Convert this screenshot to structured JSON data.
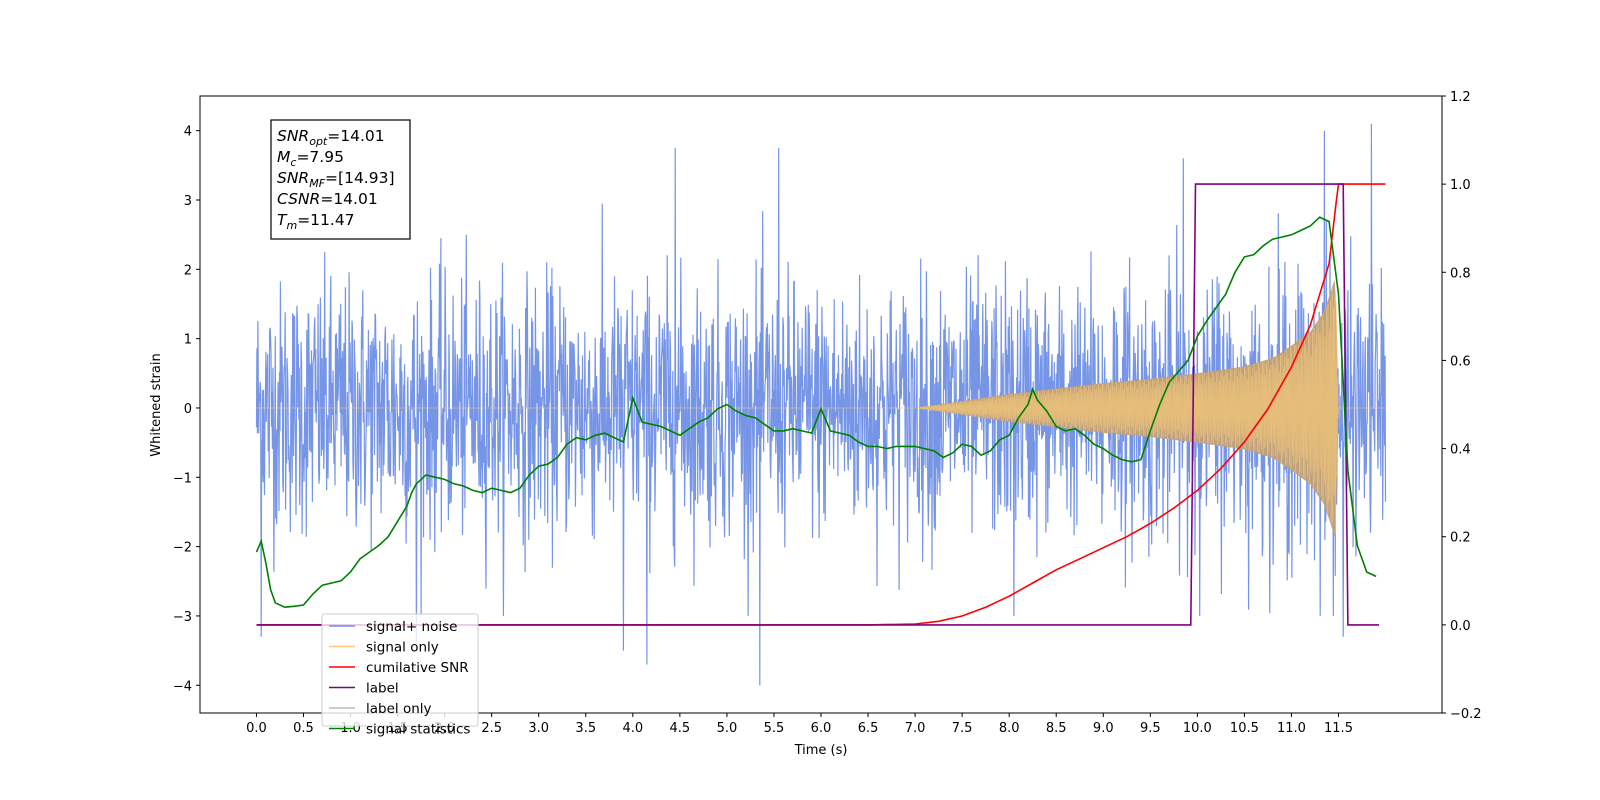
{
  "chart_data": {
    "type": "line",
    "title": "",
    "xlabel": "Time (s)",
    "ylabel": "Whitened strain",
    "xlim": [
      -0.6,
      12.6
    ],
    "ylim": [
      -4.4,
      4.5
    ],
    "y2lim": [
      -0.2,
      1.2
    ],
    "x_ticks": [
      0.0,
      0.5,
      1.0,
      1.5,
      2.0,
      2.5,
      3.0,
      3.5,
      4.0,
      4.5,
      5.0,
      5.5,
      6.0,
      6.5,
      7.0,
      7.5,
      8.0,
      8.5,
      9.0,
      9.5,
      10.0,
      10.5,
      11.0,
      11.5
    ],
    "x_tick_labels": [
      "0.0",
      "0.5",
      "1.0",
      "1.5",
      "2.0",
      "2.5",
      "3.0",
      "3.5",
      "4.0",
      "4.5",
      "5.0",
      "5.5",
      "6.0",
      "6.5",
      "7.0",
      "7.5",
      "8.0",
      "8.5",
      "9.0",
      "9.5",
      "10.0",
      "10.5",
      "11.0",
      "11.5"
    ],
    "y_ticks": [
      -4,
      -3,
      -2,
      -1,
      0,
      1,
      2,
      3,
      4
    ],
    "y_tick_labels": [
      "−4",
      "−3",
      "−2",
      "−1",
      "0",
      "1",
      "2",
      "3",
      "4"
    ],
    "y2_ticks": [
      -0.2,
      0.0,
      0.2,
      0.4,
      0.6,
      0.8,
      1.0,
      1.2
    ],
    "y2_tick_labels": [
      "−0.2",
      "0.0",
      "0.2",
      "0.4",
      "0.6",
      "0.8",
      "1.0",
      "1.2"
    ],
    "grid": false,
    "legend_position": "lower-left",
    "legend": [
      {
        "label": "signal+ noise",
        "color": "#6f8fe6"
      },
      {
        "label": "signal only",
        "color": "#f7c978"
      },
      {
        "label": "cumilative SNR",
        "color": "#ff0000"
      },
      {
        "label": "label",
        "color": "#800080"
      },
      {
        "label": "label only",
        "color": "#bbbbbb"
      },
      {
        "label": "signal statistics",
        "color": "#008000"
      }
    ],
    "annotation_lines": [
      {
        "main": "SNR",
        "sub": "opt",
        "rest": "=14.01"
      },
      {
        "main": "M",
        "sub": "c",
        "rest": "=7.95"
      },
      {
        "main": "SNR",
        "sub": "MF",
        "rest": "=[14.93]"
      },
      {
        "main": "CSNR",
        "sub": "",
        "rest": "=14.01"
      },
      {
        "main": "T",
        "sub": "m",
        "rest": "=11.47"
      }
    ],
    "series": [
      {
        "name": "signal+ noise",
        "axis": "left",
        "color": "#6f8fe6",
        "x_range": [
          0.0,
          12.0
        ],
        "typical_amplitude": 1.8,
        "peaks": [
          {
            "x": 0.05,
            "y": -3.3
          },
          {
            "x": 1.7,
            "y": -3.4
          },
          {
            "x": 3.9,
            "y": -3.5
          },
          {
            "x": 4.15,
            "y": -3.7
          },
          {
            "x": 4.45,
            "y": 3.75
          },
          {
            "x": 5.35,
            "y": -4.0
          },
          {
            "x": 5.55,
            "y": 3.75
          },
          {
            "x": 8.05,
            "y": -3.0
          },
          {
            "x": 9.85,
            "y": 3.6
          },
          {
            "x": 11.35,
            "y": 4.0
          },
          {
            "x": 11.55,
            "y": -3.3
          },
          {
            "x": 11.85,
            "y": 4.1
          }
        ]
      },
      {
        "name": "signal only",
        "axis": "left",
        "color": "#f7c978",
        "x": [
          0.0,
          7.0,
          7.5,
          8.0,
          8.5,
          9.0,
          9.5,
          10.0,
          10.5,
          10.8,
          11.0,
          11.2,
          11.35,
          11.47,
          11.5,
          12.0
        ],
        "envelope": [
          0.0,
          0.0,
          0.1,
          0.2,
          0.28,
          0.36,
          0.42,
          0.5,
          0.6,
          0.72,
          0.9,
          1.1,
          1.4,
          1.9,
          0.0,
          0.0
        ]
      },
      {
        "name": "cumilative SNR",
        "axis": "right",
        "color": "#ff0000",
        "x": [
          0.0,
          6.5,
          7.0,
          7.25,
          7.5,
          7.75,
          8.0,
          8.25,
          8.5,
          8.75,
          9.0,
          9.25,
          9.5,
          9.75,
          10.0,
          10.25,
          10.5,
          10.75,
          11.0,
          11.2,
          11.4,
          11.47,
          11.5,
          12.0
        ],
        "values": [
          0.0,
          0.0,
          0.002,
          0.008,
          0.02,
          0.04,
          0.065,
          0.095,
          0.125,
          0.15,
          0.175,
          0.2,
          0.23,
          0.265,
          0.305,
          0.355,
          0.415,
          0.49,
          0.585,
          0.68,
          0.82,
          0.95,
          1.0,
          1.0
        ]
      },
      {
        "name": "label",
        "axis": "right",
        "color": "#800080",
        "x": [
          0.0,
          9.93,
          9.98,
          11.55,
          11.6,
          11.93
        ],
        "values": [
          0.0,
          0.0,
          1.0,
          1.0,
          0.0,
          0.0
        ]
      },
      {
        "name": "signal statistics",
        "axis": "right",
        "color": "#008000",
        "x": [
          0.0,
          0.05,
          0.1,
          0.15,
          0.2,
          0.3,
          0.4,
          0.5,
          0.6,
          0.7,
          0.8,
          0.9,
          1.0,
          1.1,
          1.2,
          1.3,
          1.4,
          1.5,
          1.6,
          1.65,
          1.7,
          1.75,
          1.8,
          1.9,
          2.0,
          2.1,
          2.2,
          2.3,
          2.4,
          2.5,
          2.6,
          2.7,
          2.8,
          2.9,
          3.0,
          3.1,
          3.2,
          3.3,
          3.4,
          3.5,
          3.6,
          3.7,
          3.8,
          3.9,
          4.0,
          4.1,
          4.2,
          4.3,
          4.4,
          4.5,
          4.6,
          4.7,
          4.8,
          4.9,
          5.0,
          5.1,
          5.2,
          5.3,
          5.4,
          5.5,
          5.6,
          5.7,
          5.8,
          5.9,
          6.0,
          6.1,
          6.2,
          6.3,
          6.4,
          6.5,
          6.6,
          6.7,
          6.8,
          6.9,
          7.0,
          7.1,
          7.2,
          7.3,
          7.4,
          7.5,
          7.6,
          7.7,
          7.8,
          7.9,
          8.0,
          8.1,
          8.2,
          8.25,
          8.3,
          8.4,
          8.5,
          8.6,
          8.7,
          8.8,
          8.9,
          9.0,
          9.1,
          9.2,
          9.3,
          9.4,
          9.5,
          9.6,
          9.7,
          9.8,
          9.9,
          10.0,
          10.1,
          10.2,
          10.3,
          10.4,
          10.5,
          10.6,
          10.7,
          10.8,
          10.9,
          11.0,
          11.1,
          11.2,
          11.3,
          11.4,
          11.5,
          11.6,
          11.7,
          11.8,
          11.9
        ],
        "values": [
          0.165,
          0.19,
          0.14,
          0.08,
          0.05,
          0.04,
          0.042,
          0.045,
          0.07,
          0.09,
          0.095,
          0.1,
          0.12,
          0.15,
          0.165,
          0.18,
          0.2,
          0.235,
          0.27,
          0.3,
          0.32,
          0.33,
          0.34,
          0.335,
          0.33,
          0.32,
          0.315,
          0.305,
          0.3,
          0.31,
          0.305,
          0.3,
          0.31,
          0.34,
          0.36,
          0.365,
          0.38,
          0.41,
          0.425,
          0.42,
          0.43,
          0.435,
          0.425,
          0.415,
          0.515,
          0.46,
          0.455,
          0.45,
          0.44,
          0.43,
          0.445,
          0.46,
          0.47,
          0.49,
          0.5,
          0.485,
          0.475,
          0.47,
          0.455,
          0.44,
          0.44,
          0.445,
          0.44,
          0.435,
          0.49,
          0.44,
          0.435,
          0.43,
          0.415,
          0.405,
          0.405,
          0.4,
          0.405,
          0.405,
          0.405,
          0.4,
          0.395,
          0.38,
          0.39,
          0.41,
          0.405,
          0.385,
          0.395,
          0.42,
          0.43,
          0.47,
          0.5,
          0.535,
          0.51,
          0.485,
          0.45,
          0.44,
          0.445,
          0.43,
          0.41,
          0.4,
          0.385,
          0.375,
          0.37,
          0.375,
          0.44,
          0.5,
          0.55,
          0.575,
          0.6,
          0.655,
          0.69,
          0.72,
          0.75,
          0.8,
          0.835,
          0.84,
          0.86,
          0.875,
          0.88,
          0.885,
          0.895,
          0.905,
          0.925,
          0.915,
          0.75,
          0.35,
          0.18,
          0.12,
          0.11
        ]
      }
    ]
  }
}
